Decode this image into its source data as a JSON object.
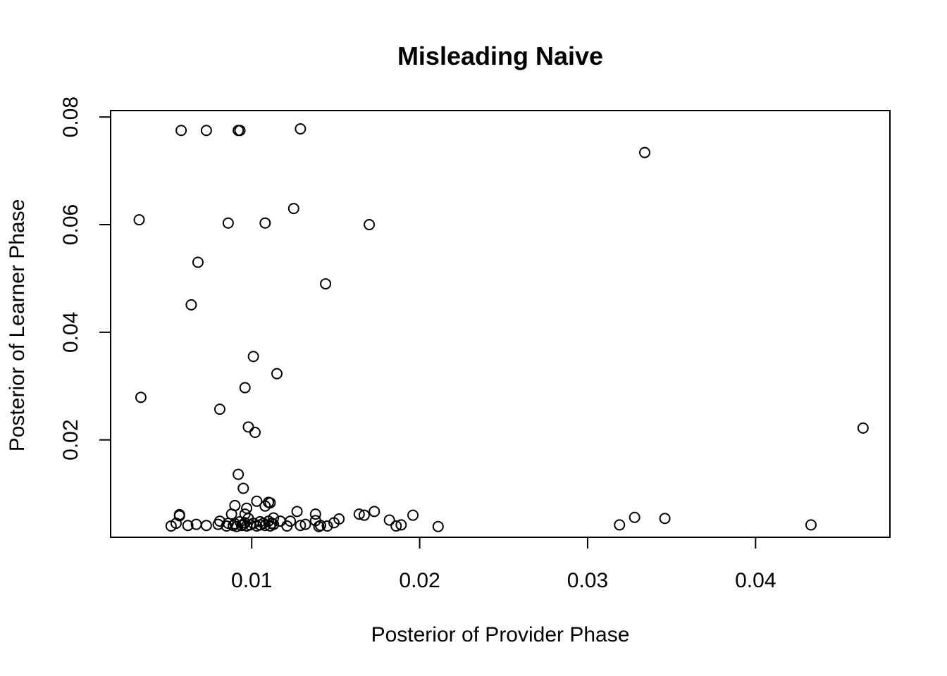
{
  "chart_data": {
    "type": "scatter",
    "title": "Misleading Naive",
    "xlabel": "Posterior of Provider Phase",
    "ylabel": "Posterior of Learner Phase",
    "xlim": [
      0.0016,
      0.048
    ],
    "ylim": [
      0.0019,
      0.0812
    ],
    "xticks": [
      0.01,
      0.02,
      0.03,
      0.04
    ],
    "xtick_labels": [
      "0.01",
      "0.02",
      "0.03",
      "0.04"
    ],
    "yticks": [
      0.02,
      0.04,
      0.06,
      0.08
    ],
    "ytick_labels": [
      "0.02",
      "0.04",
      "0.06",
      "0.08"
    ],
    "grid": false,
    "marker": "open-circle",
    "points": [
      [
        0.0058,
        0.0775
      ],
      [
        0.0073,
        0.0775
      ],
      [
        0.0092,
        0.0775
      ],
      [
        0.0093,
        0.0775
      ],
      [
        0.0129,
        0.0778
      ],
      [
        0.0334,
        0.0734
      ],
      [
        0.0033,
        0.0609
      ],
      [
        0.0086,
        0.0603
      ],
      [
        0.0108,
        0.0603
      ],
      [
        0.0125,
        0.063
      ],
      [
        0.017,
        0.06
      ],
      [
        0.0068,
        0.053
      ],
      [
        0.0144,
        0.049
      ],
      [
        0.0064,
        0.0451
      ],
      [
        0.0101,
        0.0355
      ],
      [
        0.0115,
        0.0323
      ],
      [
        0.0096,
        0.0297
      ],
      [
        0.0034,
        0.0279
      ],
      [
        0.0081,
        0.0257
      ],
      [
        0.0098,
        0.0224
      ],
      [
        0.0102,
        0.0214
      ],
      [
        0.0464,
        0.0222
      ],
      [
        0.0092,
        0.0136
      ],
      [
        0.0095,
        0.011
      ],
      [
        0.0103,
        0.0086
      ],
      [
        0.011,
        0.0084
      ],
      [
        0.0111,
        0.0083
      ],
      [
        0.009,
        0.0078
      ],
      [
        0.0108,
        0.0077
      ],
      [
        0.0097,
        0.0073
      ],
      [
        0.0127,
        0.0067
      ],
      [
        0.0138,
        0.0062
      ],
      [
        0.0088,
        0.0062
      ],
      [
        0.0096,
        0.0062
      ],
      [
        0.0164,
        0.0062
      ],
      [
        0.0167,
        0.006
      ],
      [
        0.0173,
        0.0067
      ],
      [
        0.0196,
        0.006
      ],
      [
        0.0057,
        0.0061
      ],
      [
        0.0057,
        0.0059
      ],
      [
        0.0113,
        0.0055
      ],
      [
        0.0098,
        0.0054
      ],
      [
        0.0152,
        0.0053
      ],
      [
        0.0328,
        0.0056
      ],
      [
        0.0346,
        0.0054
      ],
      [
        0.0182,
        0.0051
      ],
      [
        0.0138,
        0.005
      ],
      [
        0.0117,
        0.0049
      ],
      [
        0.0123,
        0.0049
      ],
      [
        0.0081,
        0.0049
      ],
      [
        0.0093,
        0.0048
      ],
      [
        0.0105,
        0.0048
      ],
      [
        0.011,
        0.0049
      ],
      [
        0.0149,
        0.0046
      ],
      [
        0.0055,
        0.0045
      ],
      [
        0.0086,
        0.0045
      ],
      [
        0.0096,
        0.0046
      ],
      [
        0.0101,
        0.0045
      ],
      [
        0.0107,
        0.0045
      ],
      [
        0.0112,
        0.0045
      ],
      [
        0.0067,
        0.0043
      ],
      [
        0.008,
        0.0043
      ],
      [
        0.009,
        0.0044
      ],
      [
        0.0099,
        0.0042
      ],
      [
        0.0105,
        0.0042
      ],
      [
        0.0113,
        0.0043
      ],
      [
        0.0132,
        0.0043
      ],
      [
        0.0189,
        0.0042
      ],
      [
        0.0319,
        0.0042
      ],
      [
        0.0433,
        0.0042
      ],
      [
        0.0052,
        0.004
      ],
      [
        0.0062,
        0.0041
      ],
      [
        0.0073,
        0.0041
      ],
      [
        0.0085,
        0.004
      ],
      [
        0.0091,
        0.0039
      ],
      [
        0.0097,
        0.004
      ],
      [
        0.0103,
        0.004
      ],
      [
        0.0111,
        0.004
      ],
      [
        0.0121,
        0.004
      ],
      [
        0.0129,
        0.0041
      ],
      [
        0.014,
        0.0039
      ],
      [
        0.0145,
        0.004
      ],
      [
        0.0186,
        0.004
      ],
      [
        0.0211,
        0.0039
      ],
      [
        0.0094,
        0.0041
      ],
      [
        0.0089,
        0.0041
      ],
      [
        0.0108,
        0.0041
      ],
      [
        0.0141,
        0.0041
      ],
      [
        0.0095,
        0.0043
      ]
    ]
  }
}
